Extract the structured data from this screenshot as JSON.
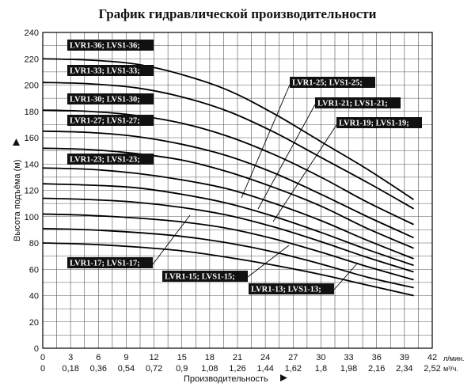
{
  "chart_data": {
    "type": "line",
    "title": "График гидравлической производительности",
    "xlabel": "Производительность",
    "ylabel": "Высота подъёма (м)",
    "x_unit_primary": "л/мин.",
    "x_unit_secondary": "м³/ч.",
    "x_ticks": [
      0,
      3,
      6,
      9,
      12,
      15,
      18,
      21,
      24,
      27,
      30,
      33,
      36,
      39,
      42
    ],
    "x_ticks_secondary": [
      "0",
      "0,18",
      "0,36",
      "0,54",
      "0,72",
      "0,9",
      "1,08",
      "1,26",
      "1,44",
      "1,62",
      "1,8",
      "1,98",
      "2,16",
      "2,34",
      "2,52"
    ],
    "y_ticks": [
      0,
      20,
      40,
      60,
      80,
      100,
      120,
      140,
      160,
      180,
      200,
      220,
      240
    ],
    "xlim": [
      0,
      42
    ],
    "ylim": [
      0,
      240
    ],
    "grid": true,
    "x": [
      0,
      5,
      10,
      15,
      20,
      25,
      30,
      35,
      40
    ],
    "series": [
      {
        "values": [
          220,
          219,
          216,
          208,
          196,
          178,
          157,
          136,
          113
        ]
      },
      {
        "values": [
          202,
          201,
          198,
          191,
          180,
          164,
          145,
          126,
          106
        ]
      },
      {
        "values": [
          181,
          180,
          177,
          171,
          161,
          147,
          130,
          111,
          94
        ]
      },
      {
        "values": [
          165,
          164,
          161,
          155,
          146,
          133,
          117,
          100,
          84
        ]
      },
      {
        "values": [
          152,
          151,
          148,
          143,
          134,
          122,
          108,
          91,
          76
        ]
      },
      {
        "values": [
          137,
          136,
          133,
          128,
          121,
          110,
          97,
          82,
          68
        ]
      },
      {
        "values": [
          125,
          124,
          122,
          117,
          110,
          100,
          88,
          75,
          63
        ]
      },
      {
        "values": [
          114,
          113,
          111,
          107,
          101,
          92,
          81,
          69,
          58
        ]
      },
      {
        "values": [
          102,
          101,
          99,
          96,
          91,
          83,
          73,
          62,
          52
        ]
      },
      {
        "values": [
          91,
          90,
          88,
          85,
          80,
          73,
          64,
          54,
          46
        ]
      },
      {
        "values": [
          80,
          79,
          77,
          74,
          69,
          63,
          56,
          48,
          40
        ]
      }
    ],
    "labels": [
      {
        "text": "LVR1-36; LVS1-36;"
      },
      {
        "text": "LVR1-33; LVS1-33;"
      },
      {
        "text": "LVR1-30; LVS1-30;"
      },
      {
        "text": "LVR1-27; LVS1-27;"
      },
      {
        "text": "LVR1-23; LVS1-23;"
      },
      {
        "text": "LVR1-25; LVS1-25;"
      },
      {
        "text": "LVR1-21; LVS1-21;"
      },
      {
        "text": "LVR1-19; LVS1-19;"
      },
      {
        "text": "LVR1-17; LVS1-17;"
      },
      {
        "text": "LVR1-15; LVS1-15;"
      },
      {
        "text": "LVR1-13; LVS1-13;"
      }
    ]
  }
}
